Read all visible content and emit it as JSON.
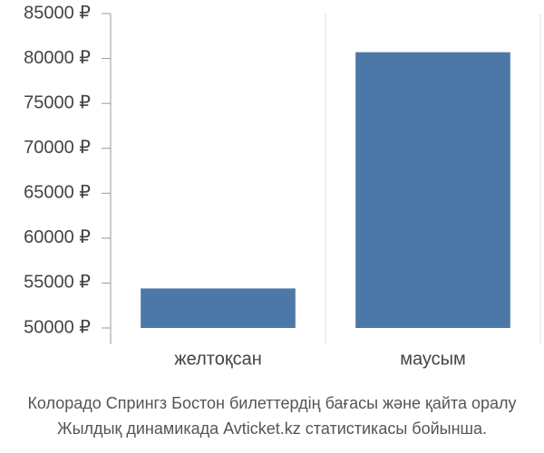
{
  "chart_data": {
    "type": "bar",
    "categories": [
      "желтоқсан",
      "маусым"
    ],
    "values": [
      54400,
      80700
    ],
    "color": "#4c78a8",
    "ylim": [
      50000,
      85000
    ],
    "yticks": [
      {
        "value": 50000,
        "label": "50000 ₽"
      },
      {
        "value": 55000,
        "label": "55000 ₽"
      },
      {
        "value": 60000,
        "label": "60000 ₽"
      },
      {
        "value": 65000,
        "label": "65000 ₽"
      },
      {
        "value": 70000,
        "label": "70000 ₽"
      },
      {
        "value": 75000,
        "label": "75000 ₽"
      },
      {
        "value": 80000,
        "label": "80000 ₽"
      },
      {
        "value": 85000,
        "label": "85000 ₽"
      }
    ],
    "caption": [
      "Колорадо Спрингз Бостон билеттердің бағасы және қайта оралу",
      "Жылдық динамикада Avticket.kz статистикасы бойынша."
    ]
  }
}
